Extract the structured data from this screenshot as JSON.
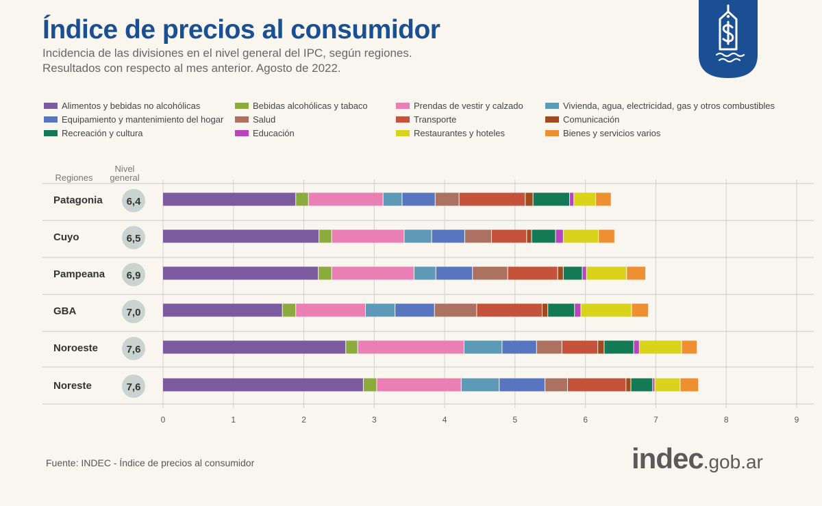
{
  "header": {
    "title": "Índice de precios al consumidor",
    "subtitle_line1": "Incidencia de las divisiones en el nivel general del IPC, según regiones.",
    "subtitle_line2": "Resultados con respecto al mes anterior. Agosto de 2022.",
    "badge_icon": "price-tag-dollar-icon"
  },
  "table_headers": {
    "regions": "Regiones",
    "level_line1": "Nivel",
    "level_line2": "general"
  },
  "chart_data": {
    "type": "bar",
    "orientation": "horizontal",
    "stacked": true,
    "title": "",
    "xlabel": "",
    "ylabel": "",
    "xlim": [
      0,
      9
    ],
    "x_ticks": [
      "0",
      "1",
      "2",
      "3",
      "4",
      "5",
      "6",
      "7",
      "8",
      "9"
    ],
    "grid": true,
    "legend_position": "top",
    "categories": [
      "Patagonia",
      "Cuyo",
      "Pampeana",
      "GBA",
      "Noroeste",
      "Noreste"
    ],
    "nivel_general": [
      "6,4",
      "6,5",
      "6,9",
      "7,0",
      "7,6",
      "7,6"
    ],
    "series": [
      {
        "name": "Alimentos y bebidas no alcohólicas",
        "color": "#7b5aa0",
        "values": [
          1.89,
          2.22,
          2.21,
          1.7,
          2.6,
          2.85
        ]
      },
      {
        "name": "Bebidas alcohólicas y tabaco",
        "color": "#8bab3e",
        "values": [
          0.18,
          0.18,
          0.19,
          0.19,
          0.17,
          0.19
        ]
      },
      {
        "name": "Prendas de vestir y calzado",
        "color": "#e97fb2",
        "values": [
          1.06,
          1.03,
          1.17,
          0.99,
          1.51,
          1.2
        ]
      },
      {
        "name": "Vivienda, agua, electricidad, gas y otros combustibles",
        "color": "#5d9ab7",
        "values": [
          0.27,
          0.39,
          0.31,
          0.42,
          0.54,
          0.54
        ]
      },
      {
        "name": "Equipamiento y mantenimiento del hogar",
        "color": "#5876bf",
        "values": [
          0.47,
          0.47,
          0.52,
          0.56,
          0.49,
          0.65
        ]
      },
      {
        "name": "Salud",
        "color": "#ad7161",
        "values": [
          0.34,
          0.38,
          0.5,
          0.6,
          0.36,
          0.32
        ]
      },
      {
        "name": "Transporte",
        "color": "#c5533b",
        "values": [
          0.94,
          0.5,
          0.71,
          0.93,
          0.51,
          0.83
        ]
      },
      {
        "name": "Comunicación",
        "color": "#a04a1e",
        "values": [
          0.11,
          0.07,
          0.08,
          0.08,
          0.09,
          0.07
        ]
      },
      {
        "name": "Recreación y cultura",
        "color": "#137a55",
        "values": [
          0.52,
          0.34,
          0.27,
          0.38,
          0.42,
          0.31
        ]
      },
      {
        "name": "Educación",
        "color": "#b744bb",
        "values": [
          0.06,
          0.11,
          0.06,
          0.09,
          0.08,
          0.03
        ]
      },
      {
        "name": "Restaurantes y hoteles",
        "color": "#d9d31b",
        "values": [
          0.31,
          0.5,
          0.57,
          0.72,
          0.6,
          0.36
        ]
      },
      {
        "name": "Bienes y servicios varios",
        "color": "#ee9032",
        "values": [
          0.22,
          0.23,
          0.27,
          0.24,
          0.22,
          0.26
        ]
      }
    ]
  },
  "footer": {
    "source": "Fuente: INDEC - Índice de precios al consumidor",
    "brand_main": "indec",
    "brand_suffix": ".gob.ar"
  }
}
